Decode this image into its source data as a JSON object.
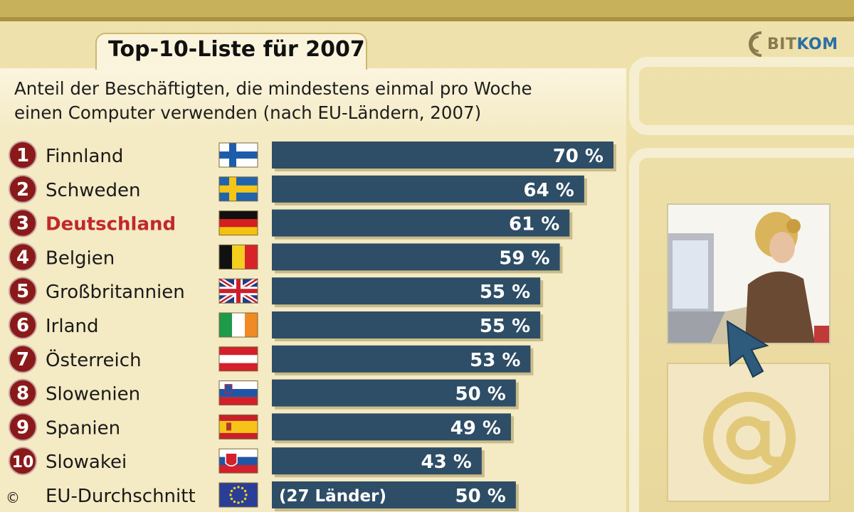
{
  "tab_title": "Top-10-Liste für 2007",
  "subtitle_line1": "Anteil der Beschäftigten, die mindestens einmal pro Woche",
  "subtitle_line2": "einen Computer verwenden (nach EU-Ländern, 2007)",
  "logo": {
    "text_a": "BIT",
    "text_b": "KOM"
  },
  "copyright": "©",
  "colors": {
    "bar": "#2e4d66",
    "rank": "#8a1a1a",
    "highlight": "#c0282c"
  },
  "chart_data": {
    "type": "bar",
    "orientation": "horizontal",
    "title": "Top-10-Liste für 2007",
    "subtitle": "Anteil der Beschäftigten, die mindestens einmal pro Woche einen Computer verwenden (nach EU-Ländern, 2007)",
    "ranks": [
      "1",
      "2",
      "3",
      "4",
      "5",
      "6",
      "7",
      "8",
      "9",
      "10",
      ""
    ],
    "categories": [
      "Finnland",
      "Schweden",
      "Deutschland",
      "Belgien",
      "Großbritannien",
      "Irland",
      "Österreich",
      "Slowenien",
      "Spanien",
      "Slowakei",
      "EU-Durchschnitt"
    ],
    "values": [
      70,
      64,
      61,
      59,
      55,
      55,
      53,
      50,
      49,
      43,
      50
    ],
    "value_labels": [
      "70 %",
      "64 %",
      "61 %",
      "59 %",
      "55 %",
      "55 %",
      "53 %",
      "50 %",
      "49 %",
      "43 %",
      "50 %"
    ],
    "bar_notes": [
      "",
      "",
      "",
      "",
      "",
      "",
      "",
      "",
      "",
      "",
      "(27 Länder)"
    ],
    "flags": [
      "finland-flag-icon",
      "sweden-flag-icon",
      "germany-flag-icon",
      "belgium-flag-icon",
      "uk-flag-icon",
      "ireland-flag-icon",
      "austria-flag-icon",
      "slovenia-flag-icon",
      "spain-flag-icon",
      "slovakia-flag-icon",
      "eu-flag-icon"
    ],
    "highlight": "Deutschland",
    "unit": "%",
    "xlim": [
      0,
      70
    ],
    "grid": false
  }
}
